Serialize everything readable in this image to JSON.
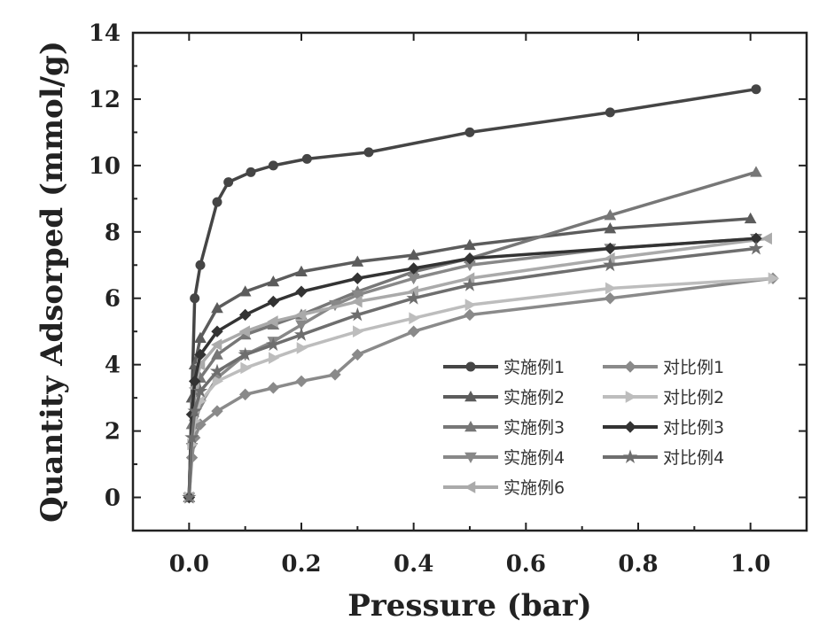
{
  "chart_data": {
    "type": "line",
    "title": "",
    "xlabel": "Pressure (bar)",
    "ylabel": "Quantity Adsorped (mmol/g)",
    "xlim": [
      -0.1,
      1.1
    ],
    "ylim": [
      -1,
      14
    ],
    "xticks": [
      0.0,
      0.2,
      0.4,
      0.6,
      0.8,
      1.0
    ],
    "xtick_labels": [
      "0.0",
      "0.2",
      "0.4",
      "0.6",
      "0.8",
      "1.0"
    ],
    "yticks": [
      0,
      2,
      4,
      6,
      8,
      10,
      12,
      14
    ],
    "ytick_labels": [
      "0",
      "2",
      "4",
      "6",
      "8",
      "10",
      "12",
      "14"
    ],
    "grid": false,
    "legend_position": "bottom-right",
    "series": [
      {
        "name": "实施例1",
        "color": "#454545",
        "marker": "circle",
        "x": [
          0.0,
          0.01,
          0.02,
          0.05,
          0.07,
          0.11,
          0.15,
          0.21,
          0.32,
          0.5,
          0.75,
          1.01
        ],
        "y": [
          0.0,
          6.0,
          7.0,
          8.9,
          9.5,
          9.8,
          10.0,
          10.2,
          10.4,
          11.0,
          11.6,
          12.3
        ]
      },
      {
        "name": "实施例2",
        "color": "#5c5c5c",
        "marker": "triangle",
        "x": [
          0.0,
          0.005,
          0.01,
          0.02,
          0.05,
          0.1,
          0.15,
          0.2,
          0.3,
          0.4,
          0.5,
          0.75,
          1.0
        ],
        "y": [
          0.0,
          3.0,
          4.0,
          4.8,
          5.7,
          6.2,
          6.5,
          6.8,
          7.1,
          7.3,
          7.6,
          8.1,
          8.4
        ]
      },
      {
        "name": "实施例3",
        "color": "#777777",
        "marker": "triangle",
        "x": [
          0.0,
          0.005,
          0.01,
          0.02,
          0.05,
          0.1,
          0.15,
          0.2,
          0.3,
          0.4,
          0.5,
          0.75,
          1.01
        ],
        "y": [
          0.0,
          2.2,
          3.0,
          3.6,
          4.3,
          4.9,
          5.2,
          5.5,
          6.2,
          6.8,
          7.2,
          8.5,
          9.8
        ]
      },
      {
        "name": "实施例4",
        "color": "#888888",
        "marker": "triangle-down",
        "x": [
          0.0,
          0.005,
          0.01,
          0.02,
          0.05,
          0.1,
          0.15,
          0.2,
          0.26,
          0.3,
          0.4,
          0.5,
          0.75,
          1.01
        ],
        "y": [
          0.0,
          1.5,
          2.2,
          2.8,
          3.6,
          4.3,
          4.7,
          5.2,
          5.8,
          6.1,
          6.6,
          7.0,
          7.5,
          7.8
        ]
      },
      {
        "name": "实施例6",
        "color": "#aaaaaa",
        "marker": "triangle-left",
        "x": [
          0.0,
          0.005,
          0.01,
          0.02,
          0.05,
          0.1,
          0.15,
          0.2,
          0.3,
          0.4,
          0.5,
          0.75,
          1.03
        ],
        "y": [
          0.0,
          2.5,
          3.3,
          4.0,
          4.6,
          5.0,
          5.3,
          5.5,
          5.9,
          6.2,
          6.6,
          7.2,
          7.8
        ]
      },
      {
        "name": "对比例1",
        "color": "#8a8a8a",
        "marker": "diamond",
        "x": [
          0.0,
          0.005,
          0.01,
          0.02,
          0.05,
          0.1,
          0.15,
          0.2,
          0.26,
          0.3,
          0.4,
          0.5,
          0.75,
          1.04
        ],
        "y": [
          0.0,
          1.2,
          1.8,
          2.2,
          2.6,
          3.1,
          3.3,
          3.5,
          3.7,
          4.3,
          5.0,
          5.5,
          6.0,
          6.6
        ]
      },
      {
        "name": "对比例2",
        "color": "#bdbdbd",
        "marker": "triangle-right",
        "x": [
          0.0,
          0.005,
          0.01,
          0.02,
          0.05,
          0.1,
          0.15,
          0.2,
          0.3,
          0.4,
          0.5,
          0.75,
          1.04
        ],
        "y": [
          0.0,
          1.6,
          2.3,
          2.9,
          3.5,
          3.9,
          4.2,
          4.5,
          5.0,
          5.4,
          5.8,
          6.3,
          6.6
        ]
      },
      {
        "name": "对比例3",
        "color": "#333333",
        "marker": "diamond",
        "x": [
          0.0,
          0.005,
          0.01,
          0.02,
          0.05,
          0.1,
          0.15,
          0.2,
          0.3,
          0.4,
          0.5,
          0.75,
          1.01
        ],
        "y": [
          0.0,
          2.5,
          3.5,
          4.3,
          5.0,
          5.5,
          5.9,
          6.2,
          6.6,
          6.9,
          7.2,
          7.5,
          7.8
        ]
      },
      {
        "name": "对比例4",
        "color": "#6e6e6e",
        "marker": "star",
        "x": [
          0.0,
          0.005,
          0.01,
          0.02,
          0.05,
          0.1,
          0.15,
          0.2,
          0.3,
          0.4,
          0.5,
          0.75,
          1.01
        ],
        "y": [
          0.0,
          1.8,
          2.6,
          3.2,
          3.8,
          4.3,
          4.6,
          4.9,
          5.5,
          6.0,
          6.4,
          7.0,
          7.5
        ]
      }
    ]
  }
}
